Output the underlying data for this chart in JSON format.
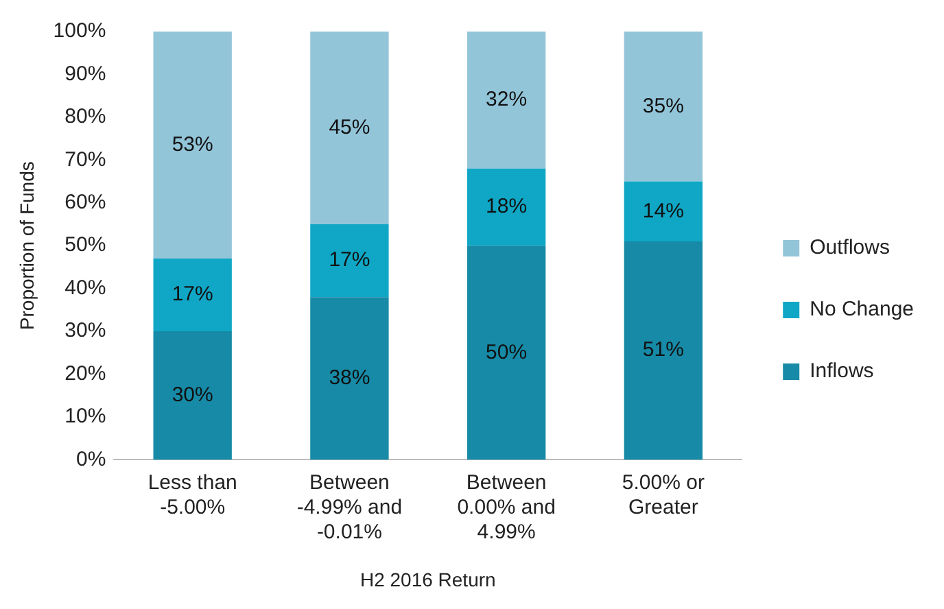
{
  "chart_data": {
    "type": "bar",
    "stacked": true,
    "xlabel": "H2 2016 Return",
    "ylabel": "Proportion of Funds",
    "categories": [
      "Less than -5.00%",
      "Between -4.99% and -0.01%",
      "Between 0.00% and 4.99%",
      "5.00% or Greater"
    ],
    "series": [
      {
        "name": "Inflows",
        "color": "#168aa6",
        "values": [
          30,
          38,
          50,
          51
        ],
        "value_labels": [
          "30%",
          "38%",
          "50%",
          "51%"
        ]
      },
      {
        "name": "No Change",
        "color": "#0fa7c5",
        "values": [
          17,
          17,
          18,
          14
        ],
        "value_labels": [
          "17%",
          "17%",
          "18%",
          "14%"
        ]
      },
      {
        "name": "Outflows",
        "color": "#93c5d9",
        "values": [
          53,
          45,
          32,
          35
        ],
        "value_labels": [
          "53%",
          "45%",
          "32%",
          "35%"
        ]
      }
    ],
    "ylim": [
      0,
      100
    ],
    "yticks": [
      {
        "value": 0,
        "label": "0%"
      },
      {
        "value": 10,
        "label": "10%"
      },
      {
        "value": 20,
        "label": "20%"
      },
      {
        "value": 30,
        "label": "30%"
      },
      {
        "value": 40,
        "label": "40%"
      },
      {
        "value": 50,
        "label": "50%"
      },
      {
        "value": 60,
        "label": "60%"
      },
      {
        "value": 70,
        "label": "70%"
      },
      {
        "value": 80,
        "label": "80%"
      },
      {
        "value": 90,
        "label": "90%"
      },
      {
        "value": 100,
        "label": "100%"
      }
    ],
    "grid": false,
    "legend": "right"
  }
}
